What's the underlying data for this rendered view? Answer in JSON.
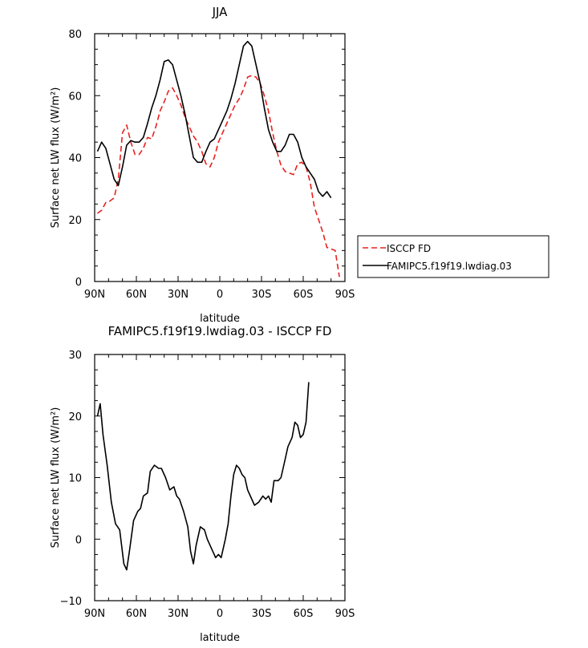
{
  "chart_data": [
    {
      "type": "line",
      "title": "JJA",
      "xlabel": "latitude",
      "ylabel": "Surface net LW flux (W/m²)",
      "xlim": [
        -90,
        90
      ],
      "ylim": [
        0,
        80
      ],
      "x_ticks": [
        {
          "value": -90,
          "label": "90N"
        },
        {
          "value": -60,
          "label": "60N"
        },
        {
          "value": -30,
          "label": "30N"
        },
        {
          "value": 0,
          "label": "0"
        },
        {
          "value": 30,
          "label": "30S"
        },
        {
          "value": 60,
          "label": "60S"
        },
        {
          "value": 90,
          "label": "90S"
        }
      ],
      "y_ticks": [
        {
          "value": 0,
          "label": "0"
        },
        {
          "value": 20,
          "label": "20"
        },
        {
          "value": 40,
          "label": "40"
        },
        {
          "value": 60,
          "label": "60"
        },
        {
          "value": 80,
          "label": "80"
        }
      ],
      "legend": {
        "position": "right",
        "entries": [
          {
            "name": "ISCCP FD",
            "color": "#e8221f",
            "dash": "dashed"
          },
          {
            "name": "FAMIPC5.f19f19.lwdiag.03",
            "color": "#000000",
            "dash": "solid"
          }
        ]
      },
      "series": [
        {
          "name": "ISCCP FD",
          "color": "#e8221f",
          "dash": "dashed",
          "points": [
            [
              -88,
              22
            ],
            [
              -85,
              23
            ],
            [
              -82,
              25.5
            ],
            [
              -79,
              26
            ],
            [
              -76,
              27
            ],
            [
              -73,
              33
            ],
            [
              -70,
              48
            ],
            [
              -67,
              50.5
            ],
            [
              -64,
              45
            ],
            [
              -61,
              41
            ],
            [
              -58,
              41
            ],
            [
              -55,
              43
            ],
            [
              -52,
              46.5
            ],
            [
              -49,
              46
            ],
            [
              -46,
              50
            ],
            [
              -43,
              55
            ],
            [
              -40,
              58
            ],
            [
              -37,
              61.5
            ],
            [
              -34,
              62.5
            ],
            [
              -31,
              60
            ],
            [
              -28,
              57
            ],
            [
              -25,
              53
            ],
            [
              -22,
              50
            ],
            [
              -19,
              47
            ],
            [
              -16,
              45
            ],
            [
              -13,
              42
            ],
            [
              -10,
              38
            ],
            [
              -7,
              37
            ],
            [
              -4,
              40
            ],
            [
              -1,
              45
            ],
            [
              2,
              48
            ],
            [
              5,
              51
            ],
            [
              8,
              54
            ],
            [
              11,
              57
            ],
            [
              14,
              59
            ],
            [
              17,
              62
            ],
            [
              20,
              66
            ],
            [
              23,
              66.5
            ],
            [
              26,
              66
            ],
            [
              29,
              64
            ],
            [
              32,
              60
            ],
            [
              35,
              55
            ],
            [
              38,
              48
            ],
            [
              41,
              42
            ],
            [
              44,
              37.5
            ],
            [
              47,
              35.5
            ],
            [
              50,
              35
            ],
            [
              53,
              34.5
            ],
            [
              56,
              38
            ],
            [
              59,
              38.5
            ],
            [
              62,
              37
            ],
            [
              65,
              32
            ],
            [
              68,
              24
            ],
            [
              71,
              20
            ],
            [
              74,
              16
            ],
            [
              77,
              11
            ],
            [
              80,
              10.5
            ],
            [
              83,
              10
            ],
            [
              86,
              1.5
            ]
          ]
        },
        {
          "name": "FAMIPC5.f19f19.lwdiag.03",
          "color": "#000000",
          "dash": "solid",
          "points": [
            [
              -88,
              42
            ],
            [
              -85,
              45
            ],
            [
              -82,
              43
            ],
            [
              -79,
              38
            ],
            [
              -76,
              33
            ],
            [
              -73,
              31
            ],
            [
              -70,
              37
            ],
            [
              -67,
              44
            ],
            [
              -64,
              45.5
            ],
            [
              -61,
              45
            ],
            [
              -58,
              45
            ],
            [
              -55,
              46.5
            ],
            [
              -52,
              51
            ],
            [
              -49,
              56
            ],
            [
              -46,
              60
            ],
            [
              -43,
              65
            ],
            [
              -40,
              71
            ],
            [
              -37,
              71.5
            ],
            [
              -34,
              70
            ],
            [
              -31,
              65
            ],
            [
              -28,
              60
            ],
            [
              -25,
              54
            ],
            [
              -22,
              47
            ],
            [
              -19,
              40
            ],
            [
              -16,
              38.5
            ],
            [
              -13,
              38.5
            ],
            [
              -10,
              42
            ],
            [
              -7,
              45
            ],
            [
              -4,
              46
            ],
            [
              -1,
              49
            ],
            [
              2,
              52
            ],
            [
              5,
              55
            ],
            [
              8,
              59
            ],
            [
              11,
              64
            ],
            [
              14,
              70
            ],
            [
              17,
              76
            ],
            [
              20,
              77.5
            ],
            [
              23,
              76
            ],
            [
              26,
              70
            ],
            [
              29,
              64
            ],
            [
              32,
              56
            ],
            [
              35,
              49
            ],
            [
              38,
              45
            ],
            [
              41,
              42
            ],
            [
              44,
              42
            ],
            [
              47,
              44
            ],
            [
              50,
              47.5
            ],
            [
              53,
              47.5
            ],
            [
              56,
              45
            ],
            [
              59,
              40
            ],
            [
              62,
              37
            ],
            [
              65,
              35
            ],
            [
              68,
              33
            ],
            [
              71,
              29
            ],
            [
              74,
              27.5
            ],
            [
              77,
              29
            ],
            [
              80,
              27
            ]
          ]
        }
      ]
    },
    {
      "type": "line",
      "title": "FAMIPC5.f19f19.lwdiag.03 - ISCCP FD",
      "xlabel": "latitude",
      "ylabel": "Surface net LW flux (W/m²)",
      "xlim": [
        -90,
        90
      ],
      "ylim": [
        -10,
        30
      ],
      "x_ticks": [
        {
          "value": -90,
          "label": "90N"
        },
        {
          "value": -60,
          "label": "60N"
        },
        {
          "value": -30,
          "label": "30N"
        },
        {
          "value": 0,
          "label": "0"
        },
        {
          "value": 30,
          "label": "30S"
        },
        {
          "value": 60,
          "label": "60S"
        },
        {
          "value": 90,
          "label": "90S"
        }
      ],
      "y_ticks": [
        {
          "value": -10,
          "label": "−10"
        },
        {
          "value": 0,
          "label": "0"
        },
        {
          "value": 10,
          "label": "10"
        },
        {
          "value": 20,
          "label": "20"
        },
        {
          "value": 30,
          "label": "30"
        }
      ],
      "series": [
        {
          "name": "FAMIPC5.f19f19.lwdiag.03 - ISCCP FD",
          "color": "#000000",
          "dash": "solid",
          "points": [
            [
              -88,
              20
            ],
            [
              -86,
              22
            ],
            [
              -84,
              17
            ],
            [
              -81,
              12
            ],
            [
              -78,
              6
            ],
            [
              -75,
              2.5
            ],
            [
              -72,
              1.5
            ],
            [
              -69,
              -4
            ],
            [
              -67,
              -5
            ],
            [
              -65,
              -2
            ],
            [
              -62,
              3
            ],
            [
              -59,
              4.5
            ],
            [
              -57,
              5
            ],
            [
              -55,
              7
            ],
            [
              -52,
              7.5
            ],
            [
              -50,
              11
            ],
            [
              -47,
              12
            ],
            [
              -44,
              11.5
            ],
            [
              -42,
              11.5
            ],
            [
              -39,
              10
            ],
            [
              -36,
              8
            ],
            [
              -33,
              8.5
            ],
            [
              -31,
              7
            ],
            [
              -29,
              6.5
            ],
            [
              -26,
              4.5
            ],
            [
              -23,
              2
            ],
            [
              -21,
              -2
            ],
            [
              -19,
              -4
            ],
            [
              -17,
              -1
            ],
            [
              -14,
              2
            ],
            [
              -11,
              1.5
            ],
            [
              -9,
              0
            ],
            [
              -6,
              -1.5
            ],
            [
              -3,
              -3
            ],
            [
              -1,
              -2.5
            ],
            [
              1,
              -3
            ],
            [
              4,
              0
            ],
            [
              6,
              2.5
            ],
            [
              8,
              7
            ],
            [
              10,
              10.5
            ],
            [
              12,
              12
            ],
            [
              14,
              11.5
            ],
            [
              16,
              10.5
            ],
            [
              18,
              10
            ],
            [
              20,
              8
            ],
            [
              22,
              7
            ],
            [
              25,
              5.5
            ],
            [
              28,
              6
            ],
            [
              31,
              7
            ],
            [
              33,
              6.5
            ],
            [
              35,
              7
            ],
            [
              37,
              6
            ],
            [
              39,
              9.5
            ],
            [
              42,
              9.5
            ],
            [
              44,
              10
            ],
            [
              47,
              13
            ],
            [
              49,
              15
            ],
            [
              52,
              16.5
            ],
            [
              54,
              19
            ],
            [
              56,
              18.5
            ],
            [
              58,
              16.5
            ],
            [
              60,
              17
            ],
            [
              62,
              19
            ],
            [
              64,
              25.5
            ]
          ]
        }
      ]
    }
  ]
}
